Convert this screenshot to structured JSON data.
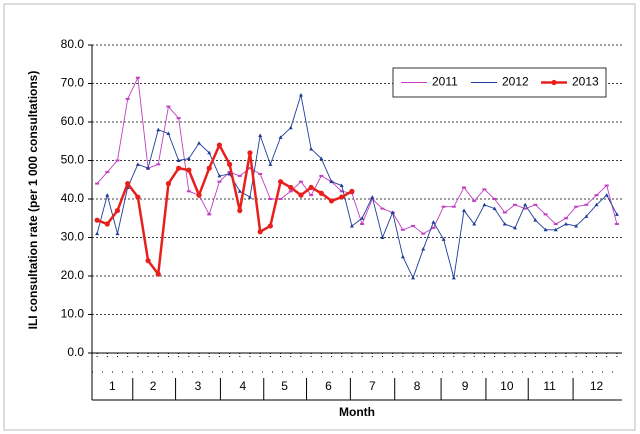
{
  "chart_data": {
    "type": "line",
    "y_label": "ILI consultation rate (per 1 000 consultations)",
    "x_label": "Month",
    "x": [
      1,
      2,
      3,
      4,
      5,
      6,
      7,
      8,
      9,
      10,
      11,
      12,
      13,
      14,
      15,
      16,
      17,
      18,
      19,
      20,
      21,
      22,
      23,
      24,
      25,
      26,
      27,
      28,
      29,
      30,
      31,
      32,
      33,
      34,
      35,
      36,
      37,
      38,
      39,
      40,
      41,
      42,
      43,
      44,
      45,
      46,
      47,
      48,
      49,
      50,
      51,
      52
    ],
    "xlim": [
      0.5,
      52.5
    ],
    "xticks": [
      {
        "value": 2.5,
        "label": "1"
      },
      {
        "value": 6.5,
        "label": "2"
      },
      {
        "value": 10.9,
        "label": "3"
      },
      {
        "value": 15.3,
        "label": "4"
      },
      {
        "value": 19.4,
        "label": "5"
      },
      {
        "value": 23.7,
        "label": "6"
      },
      {
        "value": 28,
        "label": "7"
      },
      {
        "value": 32.4,
        "label": "8"
      },
      {
        "value": 37.1,
        "label": "9"
      },
      {
        "value": 41.2,
        "label": "10"
      },
      {
        "value": 45.4,
        "label": "11"
      },
      {
        "value": 50,
        "label": "12"
      }
    ],
    "ylim": [
      0,
      80
    ],
    "yticks": [
      {
        "value": 0,
        "label": "0.0"
      },
      {
        "value": 10,
        "label": "10.0"
      },
      {
        "value": 20,
        "label": "20.0"
      },
      {
        "value": 30,
        "label": "30.0"
      },
      {
        "value": 40,
        "label": "40.0"
      },
      {
        "value": 50,
        "label": "50.0"
      },
      {
        "value": 60,
        "label": "60.0"
      },
      {
        "value": 70,
        "label": "70.0"
      },
      {
        "value": 80,
        "label": "80.0"
      }
    ],
    "grid": true,
    "legend": "upper right",
    "series": [
      {
        "name": "2011",
        "color": "#c040c0",
        "values": [
          44,
          47,
          50,
          66,
          71.5,
          48,
          49,
          64,
          61,
          42,
          41,
          36,
          44.5,
          47,
          46,
          48,
          46.5,
          40,
          40,
          42,
          44.5,
          41,
          46,
          44.5,
          42,
          41.5,
          33.5,
          40,
          37.5,
          36.5,
          32,
          33,
          31,
          32.5,
          38,
          38,
          43,
          39.5,
          42.5,
          40,
          36.5,
          38.5,
          37.5,
          38.5,
          36,
          33.5,
          35,
          38,
          38.5,
          41,
          43.5,
          33.5
        ]
      },
      {
        "name": "2012",
        "color": "#1f3c99",
        "values": [
          31,
          41,
          31,
          43,
          49,
          48,
          58,
          57,
          50,
          50.5,
          54.5,
          52,
          46,
          46.5,
          42,
          40.5,
          56.5,
          49,
          56,
          58.5,
          67,
          53,
          50.5,
          44.5,
          43.5,
          33,
          35,
          40.5,
          30,
          36.5,
          25,
          19.5,
          27,
          34,
          29.5,
          19.5,
          37,
          33.5,
          38.5,
          37.5,
          33.5,
          32.5,
          38.5,
          34.5,
          32,
          32,
          33.5,
          33,
          35.5,
          38.5,
          41,
          36
        ]
      },
      {
        "name": "2013",
        "color": "#e8201c",
        "values": [
          34.5,
          33.5,
          37,
          44,
          40.5,
          24,
          20.5,
          44,
          48,
          47.5,
          41,
          48,
          54,
          49,
          37,
          52,
          31.5,
          33,
          44.5,
          43,
          41,
          43,
          41.5,
          39.5,
          40.5,
          42,
          null,
          null,
          null,
          null,
          null,
          null,
          null,
          null,
          null,
          null,
          null,
          null,
          null,
          null,
          null,
          null,
          null,
          null,
          null,
          null,
          null,
          null,
          null,
          null,
          null,
          null
        ]
      }
    ]
  }
}
